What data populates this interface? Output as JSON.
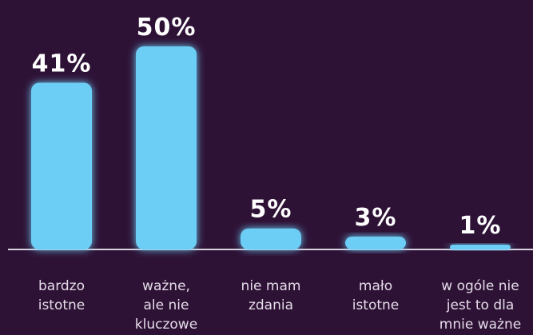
{
  "chart_data": {
    "type": "bar",
    "categories": [
      "bardzo istotne",
      "ważne, ale nie kluczowe",
      "nie mam zdania",
      "mało istotne",
      "w ogóle nie jest to dla mnie ważne"
    ],
    "values": [
      41,
      50,
      5,
      3,
      1
    ],
    "value_labels": [
      "41%",
      "50%",
      "5%",
      "3%",
      "1%"
    ],
    "color": "#6ccdf5"
  }
}
